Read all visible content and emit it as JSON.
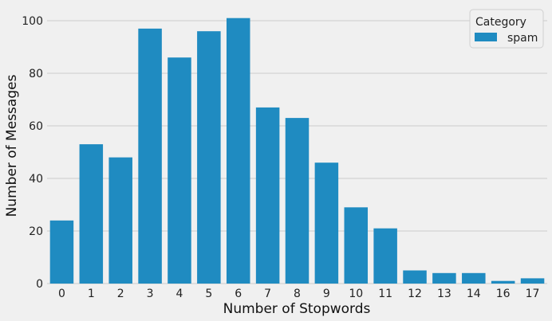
{
  "chart_data": {
    "type": "bar",
    "title": "",
    "xlabel": "Number of Stopwords",
    "ylabel": "Number of Messages",
    "categories": [
      "0",
      "1",
      "2",
      "3",
      "4",
      "5",
      "6",
      "7",
      "8",
      "9",
      "10",
      "11",
      "12",
      "13",
      "14",
      "16",
      "17"
    ],
    "series": [
      {
        "name": "spam",
        "values": [
          24,
          53,
          48,
          97,
          86,
          96,
          101,
          67,
          63,
          46,
          29,
          21,
          5,
          4,
          4,
          1,
          2
        ]
      }
    ],
    "ylim": [
      0,
      105
    ],
    "yticks": [
      "0",
      "20",
      "40",
      "60",
      "80",
      "100"
    ],
    "grid": "horizontal",
    "legend": {
      "title": "Category",
      "placement": "top-right"
    },
    "colors": {
      "bar": "#1f8bc1",
      "background": "#f0f0f0",
      "grid": "#cbcbcb"
    }
  }
}
